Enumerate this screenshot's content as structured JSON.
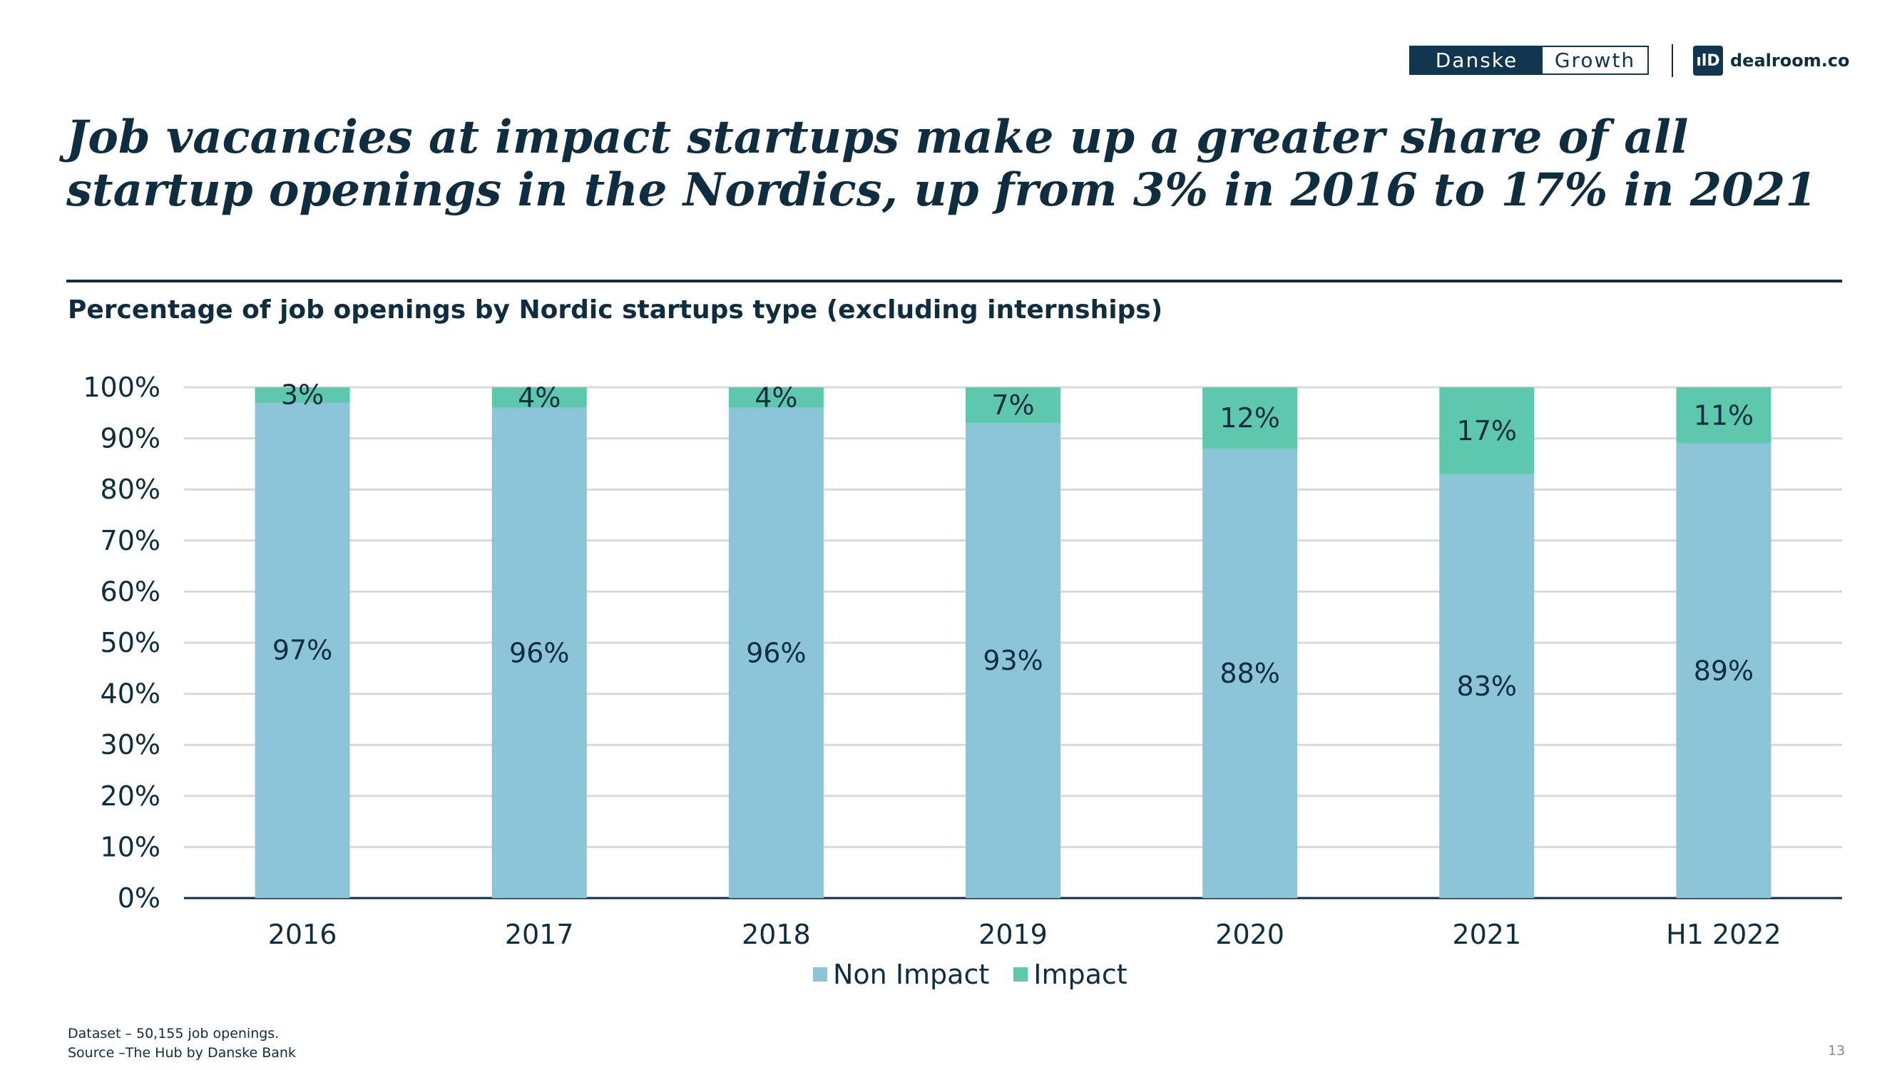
{
  "branding": {
    "danske_left": "Danske",
    "danske_right": "Growth",
    "dealroom_mark": "ılD",
    "dealroom_text": "dealroom.co"
  },
  "headline": "Job vacancies at impact startups make up a greater share of all startup openings in the Nordics, up from 3% in 2016 to 17% in 2021",
  "footnote": {
    "dataset": "Dataset – 50,155 job openings.",
    "source": "Source –The Hub by Danske Bank"
  },
  "page_number": "13",
  "colors": {
    "non_impact": "#8dc5d8",
    "impact": "#5ec8ad",
    "grid": "#d9d9d9",
    "axis": "#0f2d40"
  },
  "chart_data": {
    "type": "bar",
    "stacked": true,
    "title": "Percentage of job openings by Nordic startups type (excluding internships)",
    "categories": [
      "2016",
      "2017",
      "2018",
      "2019",
      "2020",
      "2021",
      "H1 2022"
    ],
    "series": [
      {
        "name": "Non Impact",
        "values": [
          97,
          96,
          96,
          93,
          88,
          83,
          89
        ],
        "labels": [
          "97%",
          "96%",
          "96%",
          "93%",
          "88%",
          "83%",
          "89%"
        ]
      },
      {
        "name": "Impact",
        "values": [
          3,
          4,
          4,
          7,
          12,
          17,
          11
        ],
        "labels": [
          "3%",
          "4%",
          "4%",
          "7%",
          "12%",
          "17%",
          "11%"
        ]
      }
    ],
    "y_ticks": [
      "0%",
      "10%",
      "20%",
      "30%",
      "40%",
      "50%",
      "60%",
      "70%",
      "80%",
      "90%",
      "100%"
    ],
    "ylim": [
      0,
      100
    ],
    "grid": true,
    "legend": "bottom-center"
  }
}
